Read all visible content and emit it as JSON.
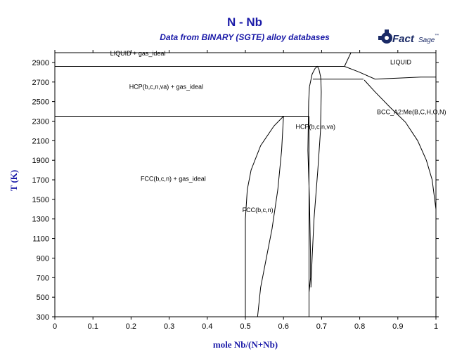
{
  "header": {
    "title": "N - Nb",
    "subtitle": "Data from BINARY (SGTE) alloy databases"
  },
  "logo": {
    "fact": "Fact",
    "sage": "Sage",
    "mark": "™",
    "icon": "factsage-gear-icon",
    "color": "#1a2a66"
  },
  "chart_data": {
    "type": "line",
    "title": "N - Nb",
    "subtitle": "Data from BINARY (SGTE) alloy databases",
    "xlabel": "mole Nb/(N+Nb)",
    "ylabel": "T (K)",
    "xlim": [
      0,
      1
    ],
    "ylim": [
      300,
      3000
    ],
    "x_ticks": [
      "0",
      "0.1",
      "0.2",
      "0.3",
      "0.4",
      "0.5",
      "0.6",
      "0.7",
      "0.8",
      "0.9",
      "1"
    ],
    "y_ticks": [
      "300",
      "500",
      "700",
      "900",
      "1100",
      "1300",
      "1500",
      "1700",
      "1900",
      "2100",
      "2300",
      "2500",
      "2700",
      "2900"
    ],
    "grid": false,
    "title_color": "#1a1aa8",
    "region_labels": [
      {
        "text": "LIQUID + gas_ideal",
        "x": 0.145,
        "y": 2970
      },
      {
        "text": "LIQUID",
        "x": 0.88,
        "y": 2880
      },
      {
        "text": "HCP(b,c,n,va) + gas_ideal",
        "x": 0.195,
        "y": 2630
      },
      {
        "text": "BCC_A2:Me(B,C,H,O,N)",
        "x": 0.845,
        "y": 2370
      },
      {
        "text": "HCP(b,c,n,va)",
        "x": 0.632,
        "y": 2220
      },
      {
        "text": "FCC(b,c,n) + gas_ideal",
        "x": 0.225,
        "y": 1690
      },
      {
        "text": "FCC(b,c,n)",
        "x": 0.492,
        "y": 1370
      }
    ],
    "series": [
      {
        "points": [
          [
            0,
            2860
          ],
          [
            0.76,
            2860
          ]
        ]
      },
      {
        "points": [
          [
            0.76,
            2860
          ],
          [
            0.777,
            3000
          ]
        ]
      },
      {
        "points": [
          [
            0,
            2350
          ],
          [
            0.667,
            2350
          ]
        ]
      },
      {
        "points": [
          [
            0.667,
            2350
          ],
          [
            0.667,
            300
          ]
        ]
      },
      {
        "points": [
          [
            0.677,
            2730
          ],
          [
            0.81,
            2730
          ]
        ]
      },
      {
        "points": [
          [
            0.76,
            2860
          ],
          [
            0.8,
            2800
          ],
          [
            0.84,
            2730
          ],
          [
            0.9,
            2740
          ],
          [
            0.96,
            2750
          ],
          [
            1.0,
            2750
          ]
        ]
      },
      {
        "points": [
          [
            0.668,
            2650
          ],
          [
            0.675,
            2780
          ],
          [
            0.683,
            2840
          ],
          [
            0.689,
            2860
          ],
          [
            0.693,
            2830
          ],
          [
            0.697,
            2760
          ],
          [
            0.698,
            2730
          ]
        ]
      },
      {
        "points": [
          [
            0.668,
            2650
          ],
          [
            0.666,
            2500
          ],
          [
            0.664,
            2000
          ],
          [
            0.668,
            1500
          ],
          [
            0.671,
            900
          ],
          [
            0.671,
            700
          ],
          [
            0.667,
            550
          ]
        ]
      },
      {
        "points": [
          [
            0.698,
            2730
          ],
          [
            0.699,
            2600
          ],
          [
            0.697,
            2200
          ],
          [
            0.69,
            1800
          ],
          [
            0.68,
            1300
          ],
          [
            0.675,
            900
          ],
          [
            0.672,
            600
          ]
        ]
      },
      {
        "points": [
          [
            0.6,
            2350
          ],
          [
            0.575,
            2250
          ],
          [
            0.54,
            2050
          ],
          [
            0.515,
            1800
          ],
          [
            0.505,
            1600
          ],
          [
            0.5,
            1300
          ],
          [
            0.5,
            300
          ]
        ]
      },
      {
        "points": [
          [
            0.6,
            2350
          ],
          [
            0.595,
            2000
          ],
          [
            0.585,
            1600
          ],
          [
            0.57,
            1200
          ],
          [
            0.555,
            900
          ],
          [
            0.54,
            600
          ],
          [
            0.532,
            300
          ]
        ]
      },
      {
        "points": [
          [
            0.812,
            2720
          ],
          [
            0.84,
            2600
          ],
          [
            0.88,
            2440
          ],
          [
            0.92,
            2290
          ],
          [
            0.952,
            2100
          ],
          [
            0.975,
            1900
          ],
          [
            0.99,
            1700
          ],
          [
            1.0,
            1400
          ],
          [
            1.0,
            1050
          ]
        ]
      }
    ]
  }
}
